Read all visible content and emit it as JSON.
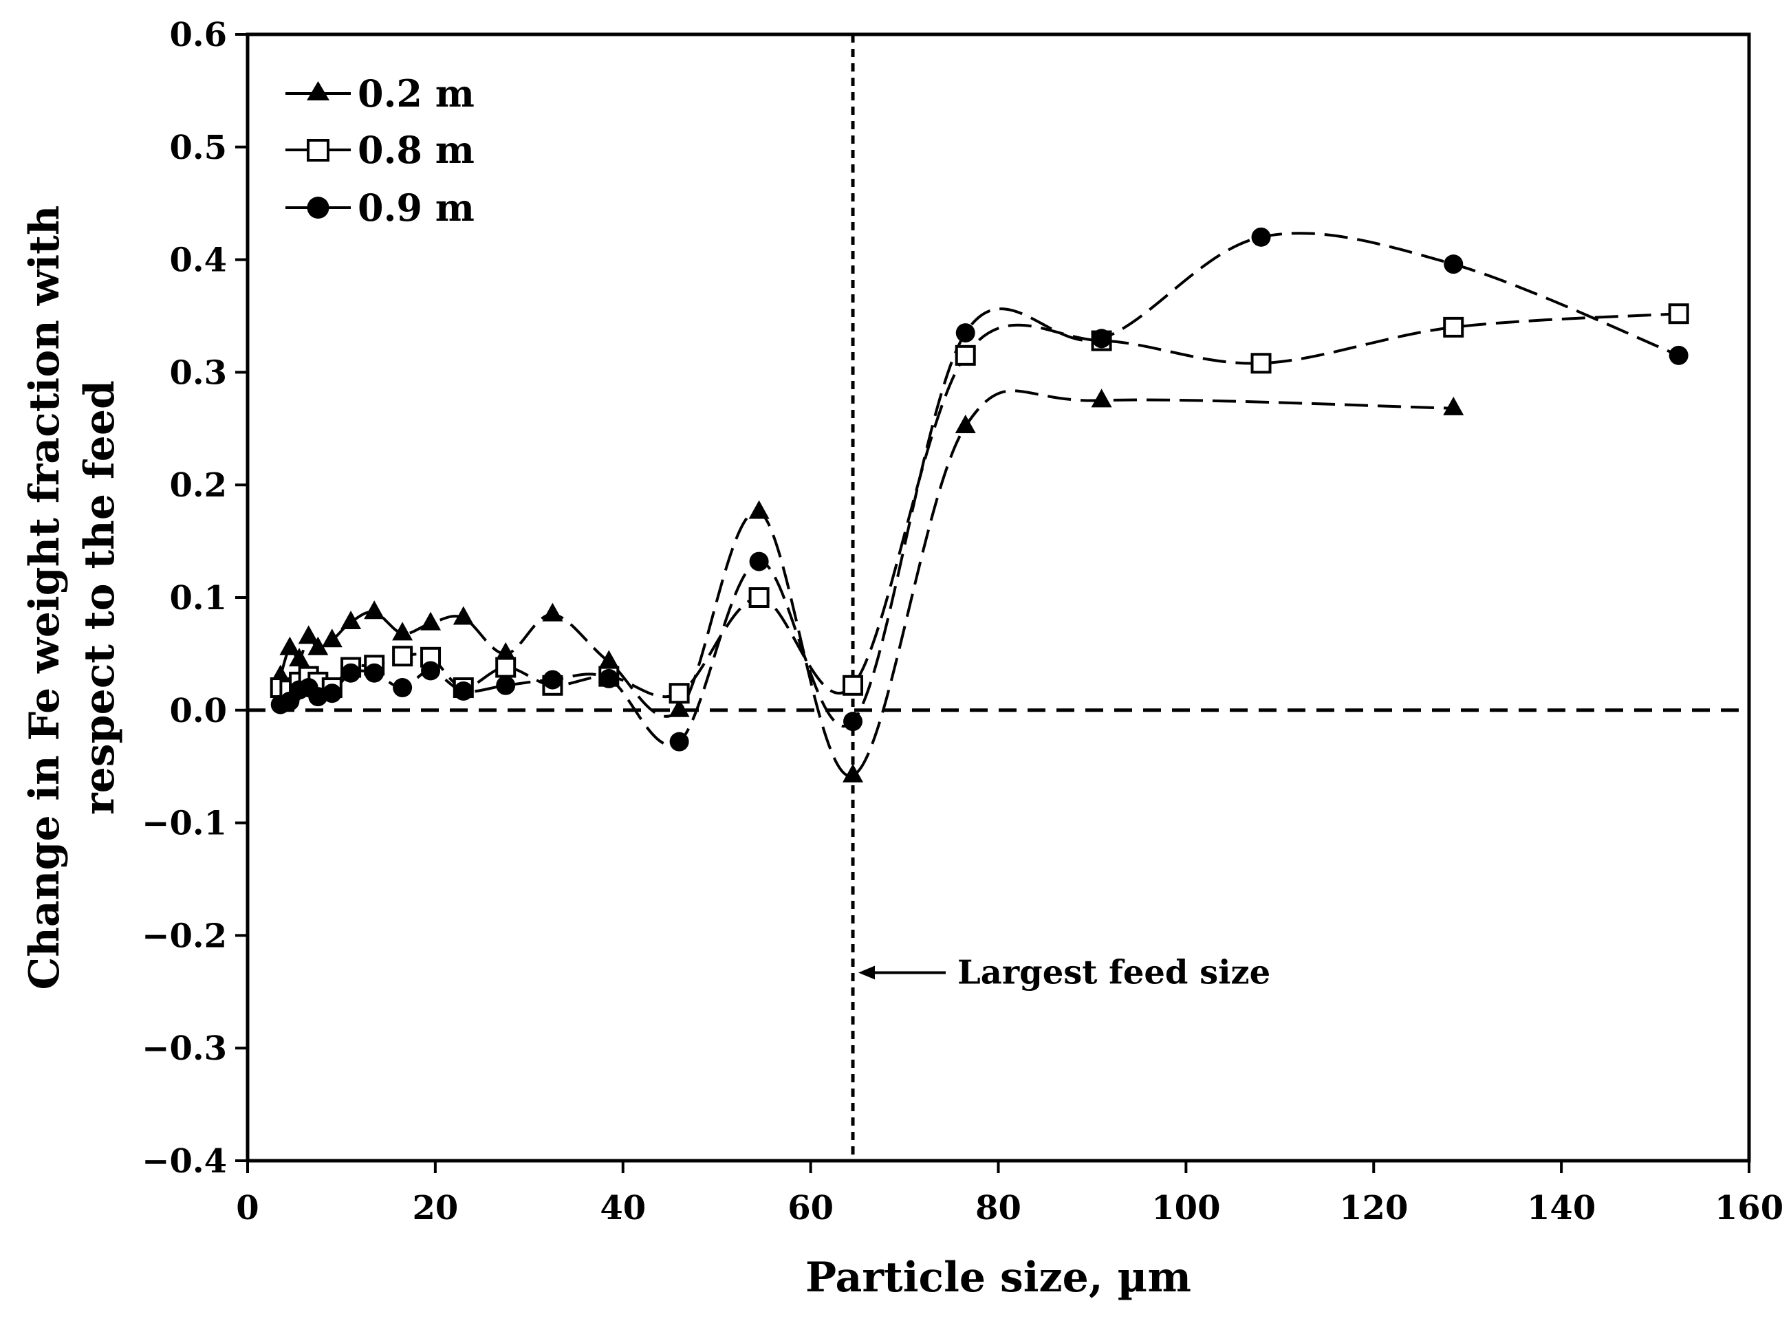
{
  "chart_data": {
    "type": "scatter",
    "title": "",
    "xlabel": "Particle size, µm",
    "ylabel_lines": [
      "Change in Fe weight fraction with",
      "respect to the feed"
    ],
    "xlim": [
      0,
      160
    ],
    "ylim": [
      -0.4,
      0.6
    ],
    "xticks": [
      0,
      20,
      40,
      60,
      80,
      100,
      120,
      140,
      160
    ],
    "xtick_labels": [
      "0",
      "20",
      "40",
      "60",
      "80",
      "100",
      "120",
      "140",
      "160"
    ],
    "yticks": [
      0.6,
      0.5,
      0.4,
      0.3,
      0.2,
      0.1,
      0.0,
      -0.1,
      -0.2,
      -0.3,
      -0.4
    ],
    "ytick_labels": [
      "0.6",
      "0.5",
      "0.4",
      "0.3",
      "0.2",
      "0.1",
      "0.0",
      "−0.1",
      "−0.2",
      "−0.3",
      "−0.4"
    ],
    "grid": false,
    "legend_position": "top-left",
    "series": [
      {
        "name": "0.2 m",
        "marker": "triangle",
        "x": [
          3.5,
          4.5,
          5.5,
          6.5,
          7.5,
          9,
          11,
          13.5,
          16.5,
          19.5,
          23,
          27.5,
          32.5,
          38.5,
          46,
          54.5,
          64.5,
          76.5,
          91,
          128.5
        ],
        "y": [
          0.03,
          0.055,
          0.045,
          0.065,
          0.055,
          0.062,
          0.078,
          0.087,
          0.068,
          0.077,
          0.082,
          0.05,
          0.085,
          0.043,
          0.0,
          0.176,
          -0.058,
          0.252,
          0.275,
          0.268
        ]
      },
      {
        "name": "0.8 m",
        "marker": "square-open",
        "x": [
          3.5,
          4.5,
          5.5,
          6.5,
          7.5,
          9,
          11,
          13.5,
          16.5,
          19.5,
          23,
          27.5,
          32.5,
          38.5,
          46,
          54.5,
          64.5,
          76.5,
          91,
          108,
          128.5,
          152.5
        ],
        "y": [
          0.02,
          0.018,
          0.025,
          0.03,
          0.025,
          0.02,
          0.038,
          0.04,
          0.048,
          0.047,
          0.02,
          0.038,
          0.022,
          0.03,
          0.015,
          0.1,
          0.022,
          0.315,
          0.328,
          0.308,
          0.34,
          0.352
        ]
      },
      {
        "name": "0.9 m",
        "marker": "circle",
        "x": [
          3.5,
          4.5,
          5.5,
          6.5,
          7.5,
          9,
          11,
          13.5,
          16.5,
          19.5,
          23,
          27.5,
          32.5,
          38.5,
          46,
          54.5,
          64.5,
          76.5,
          91,
          108,
          128.5,
          152.5
        ],
        "y": [
          0.005,
          0.008,
          0.018,
          0.02,
          0.012,
          0.015,
          0.033,
          0.033,
          0.02,
          0.035,
          0.017,
          0.022,
          0.027,
          0.028,
          -0.028,
          0.132,
          -0.01,
          0.335,
          0.33,
          0.42,
          0.396,
          0.315
        ]
      }
    ],
    "reference_lines": {
      "horizontal_y": 0.0,
      "vertical_x": 64.5
    },
    "annotations": [
      {
        "text": "Largest feed size",
        "x": 64.5,
        "y": -0.233
      }
    ]
  }
}
